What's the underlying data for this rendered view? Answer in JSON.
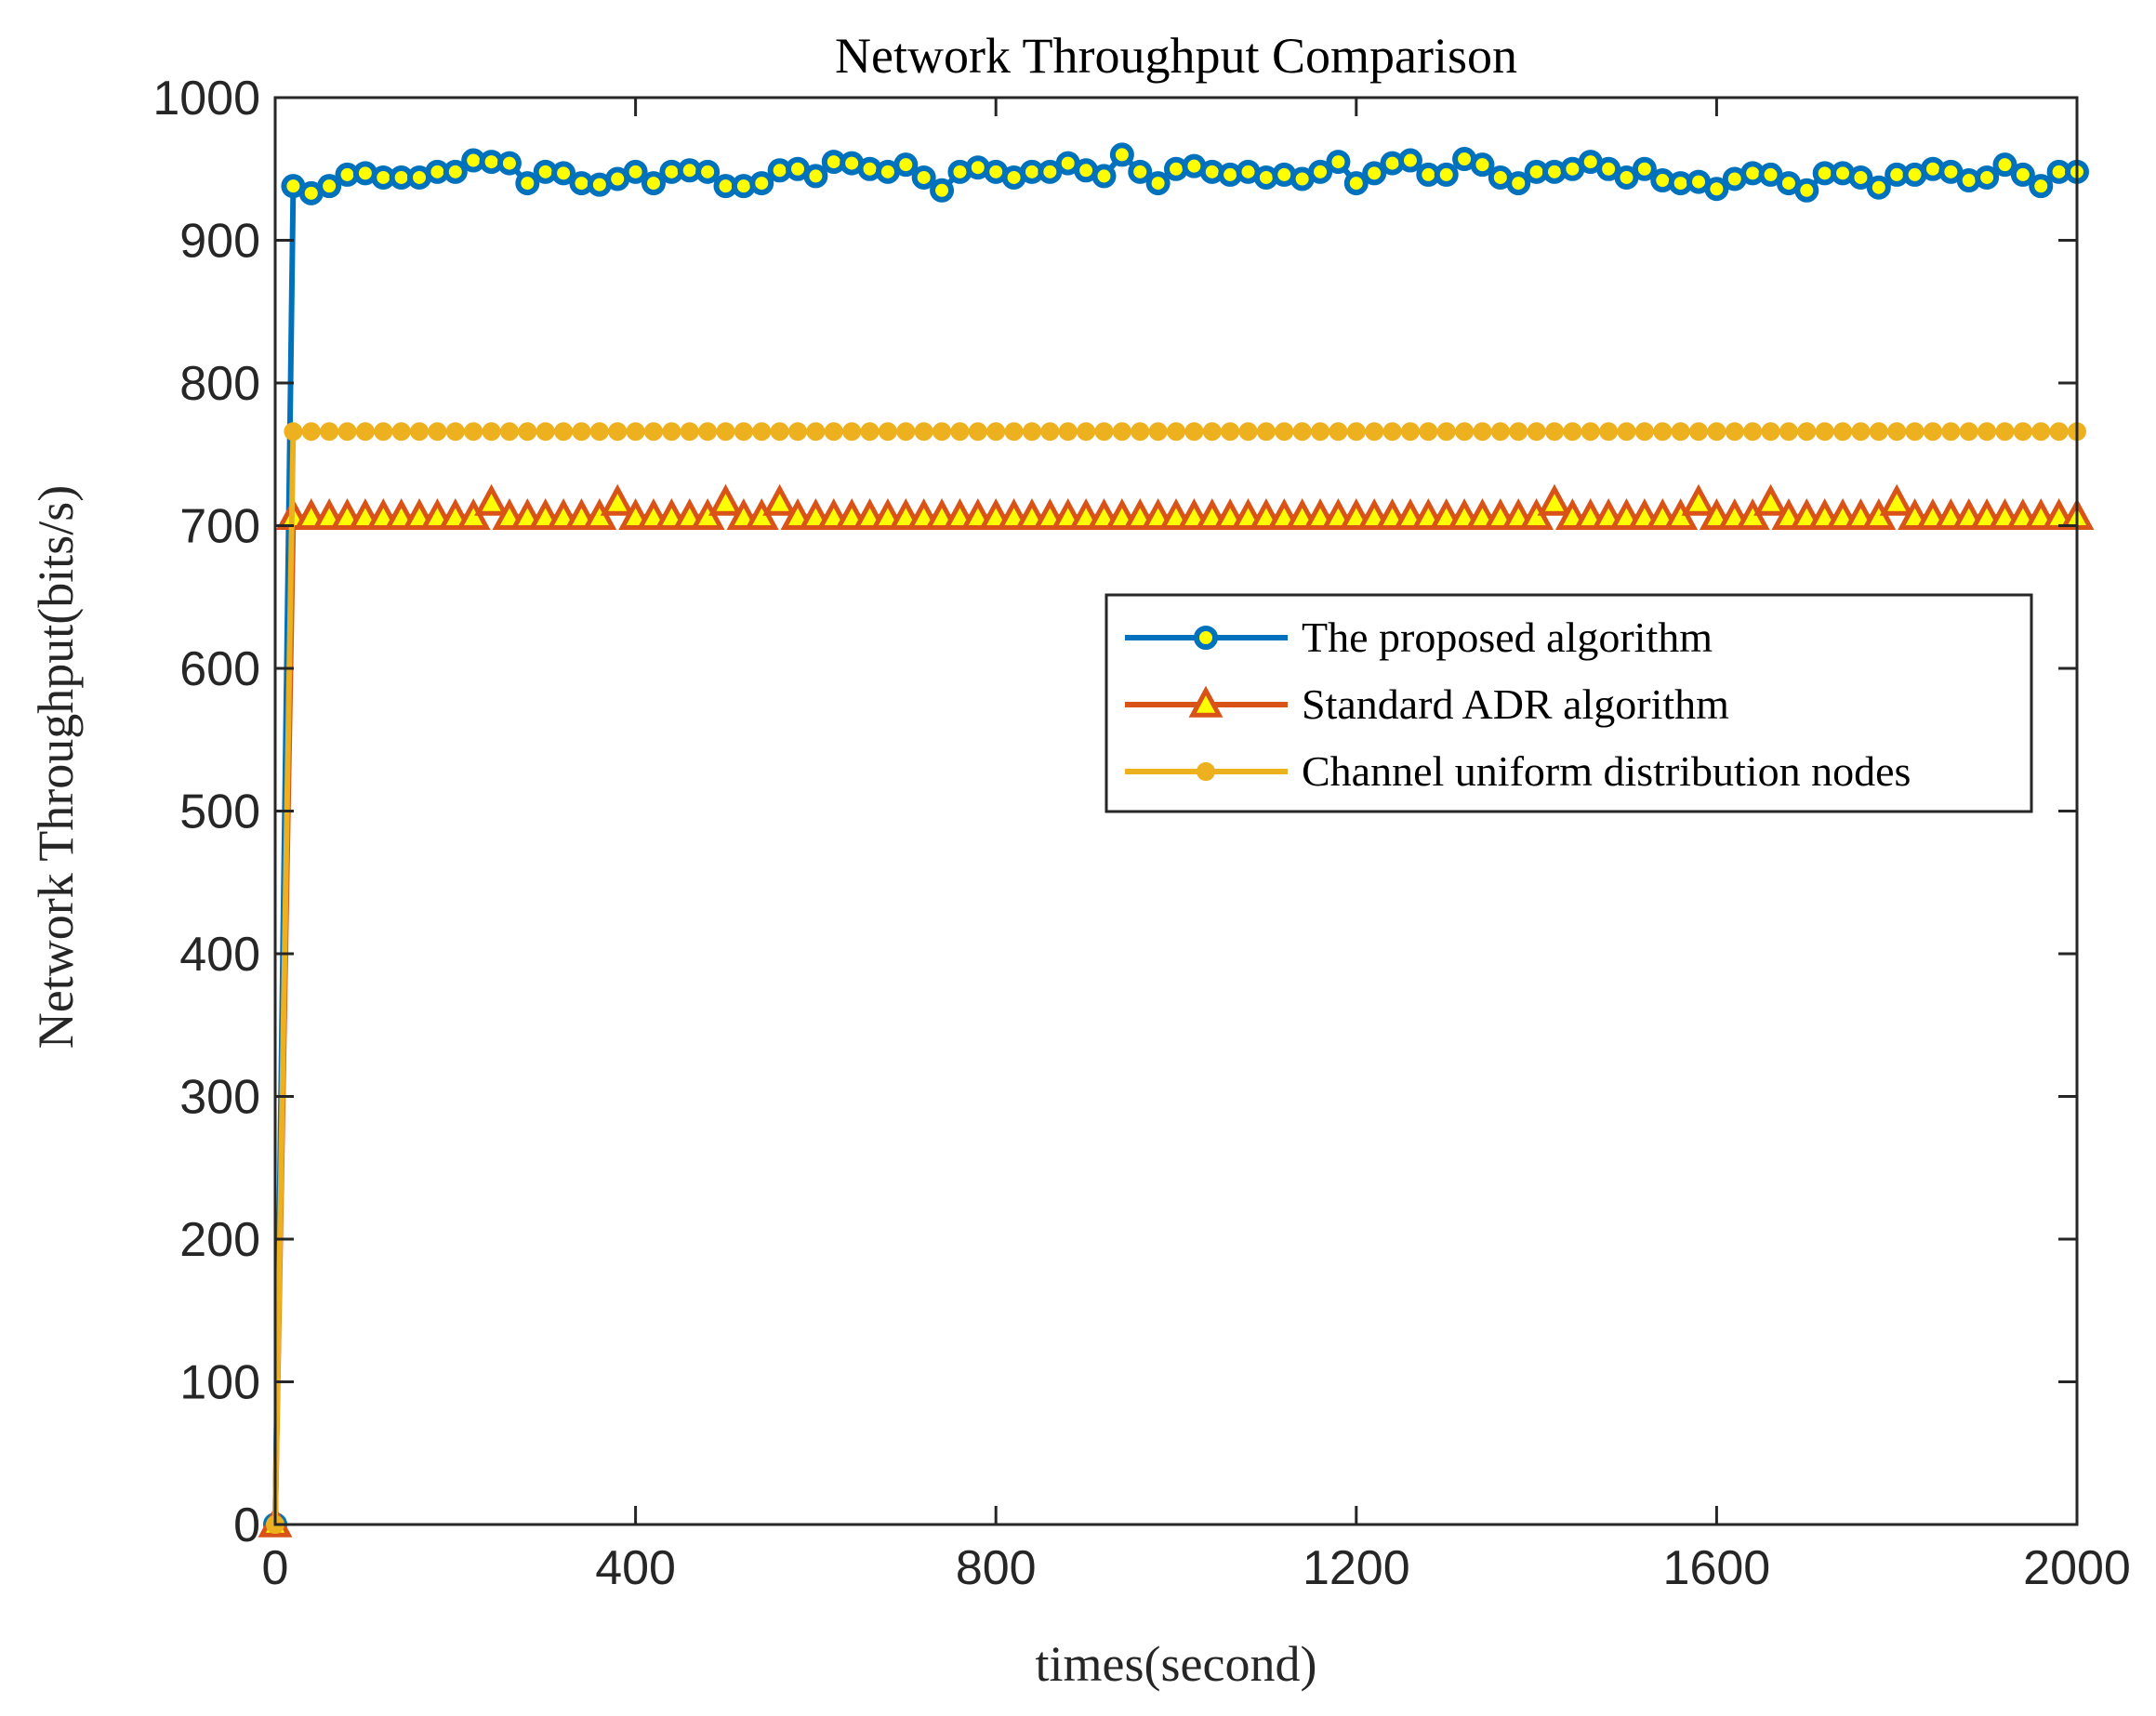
{
  "chart_data": {
    "type": "line",
    "title": "Network Throughput Comparison",
    "xlabel": "times(second)",
    "ylabel": "Network Throughput(bits/s)",
    "xlim": [
      0,
      2000
    ],
    "ylim": [
      0,
      1000
    ],
    "xticks": [
      "0",
      "400",
      "800",
      "1200",
      "1600",
      "2000"
    ],
    "yticks": [
      "0",
      "100",
      "200",
      "300",
      "400",
      "500",
      "600",
      "700",
      "800",
      "900",
      "1000"
    ],
    "grid": false,
    "legend_position": "right",
    "x": [
      0,
      20,
      40,
      60,
      80,
      100,
      120,
      140,
      160,
      180,
      200,
      220,
      240,
      260,
      280,
      300,
      320,
      340,
      360,
      380,
      400,
      420,
      440,
      460,
      480,
      500,
      520,
      540,
      560,
      580,
      600,
      620,
      640,
      660,
      680,
      700,
      720,
      740,
      760,
      780,
      800,
      820,
      840,
      860,
      880,
      900,
      920,
      940,
      960,
      980,
      1000,
      1020,
      1040,
      1060,
      1080,
      1100,
      1120,
      1140,
      1160,
      1180,
      1200,
      1220,
      1240,
      1260,
      1280,
      1300,
      1320,
      1340,
      1360,
      1380,
      1400,
      1420,
      1440,
      1460,
      1480,
      1500,
      1520,
      1540,
      1560,
      1580,
      1600,
      1620,
      1640,
      1660,
      1680,
      1700,
      1720,
      1740,
      1760,
      1780,
      1800,
      1820,
      1840,
      1860,
      1880,
      1900,
      1920,
      1940,
      1960,
      1980,
      2000
    ],
    "series": [
      {
        "name": "The proposed algorithm",
        "color": "#0072BD",
        "marker": "circle",
        "marker_fill": "#FFFF00",
        "values": [
          0,
          938,
          933,
          938,
          946,
          947,
          944,
          944,
          944,
          948,
          948,
          956,
          955,
          954,
          940,
          948,
          947,
          940,
          939,
          943,
          948,
          940,
          948,
          949,
          948,
          938,
          938,
          940,
          949,
          950,
          945,
          955,
          954,
          950,
          948,
          953,
          944,
          935,
          948,
          951,
          948,
          944,
          948,
          948,
          954,
          949,
          945,
          960,
          948,
          940,
          950,
          952,
          948,
          946,
          948,
          944,
          946,
          943,
          948,
          955,
          940,
          947,
          954,
          956,
          946,
          946,
          957,
          953,
          944,
          940,
          948,
          948,
          950,
          955,
          950,
          944,
          950,
          942,
          940,
          941,
          936,
          943,
          947,
          946,
          940,
          935,
          947,
          947,
          944,
          937,
          946,
          946,
          950,
          948,
          942,
          944,
          953,
          946,
          938,
          948,
          948
        ]
      },
      {
        "name": "Standard ADR algorithm",
        "color": "#D95319",
        "marker": "triangle",
        "marker_fill": "#FFFF00",
        "values": [
          0,
          706,
          706,
          706,
          706,
          706,
          706,
          706,
          706,
          706,
          706,
          706,
          716,
          706,
          706,
          706,
          706,
          706,
          706,
          716,
          706,
          706,
          706,
          706,
          706,
          716,
          706,
          706,
          716,
          706,
          706,
          706,
          706,
          706,
          706,
          706,
          706,
          706,
          706,
          706,
          706,
          706,
          706,
          706,
          706,
          706,
          706,
          706,
          706,
          706,
          706,
          706,
          706,
          706,
          706,
          706,
          706,
          706,
          706,
          706,
          706,
          706,
          706,
          706,
          706,
          706,
          706,
          706,
          706,
          706,
          706,
          716,
          706,
          706,
          706,
          706,
          706,
          706,
          706,
          716,
          706,
          706,
          706,
          716,
          706,
          706,
          706,
          706,
          706,
          706,
          716,
          706,
          706,
          706,
          706,
          706,
          706,
          706,
          706,
          706,
          706
        ]
      },
      {
        "name": "Channel uniform distribution nodes",
        "color": "#EDB120",
        "marker": "circle",
        "marker_fill": "#EDB120",
        "values": [
          0,
          766,
          766,
          766,
          766,
          766,
          766,
          766,
          766,
          766,
          766,
          766,
          766,
          766,
          766,
          766,
          766,
          766,
          766,
          766,
          766,
          766,
          766,
          766,
          766,
          766,
          766,
          766,
          766,
          766,
          766,
          766,
          766,
          766,
          766,
          766,
          766,
          766,
          766,
          766,
          766,
          766,
          766,
          766,
          766,
          766,
          766,
          766,
          766,
          766,
          766,
          766,
          766,
          766,
          766,
          766,
          766,
          766,
          766,
          766,
          766,
          766,
          766,
          766,
          766,
          766,
          766,
          766,
          766,
          766,
          766,
          766,
          766,
          766,
          766,
          766,
          766,
          766,
          766,
          766,
          766,
          766,
          766,
          766,
          766,
          766,
          766,
          766,
          766,
          766,
          766,
          766,
          766,
          766,
          766,
          766,
          766,
          766,
          766,
          766,
          766
        ]
      }
    ]
  }
}
